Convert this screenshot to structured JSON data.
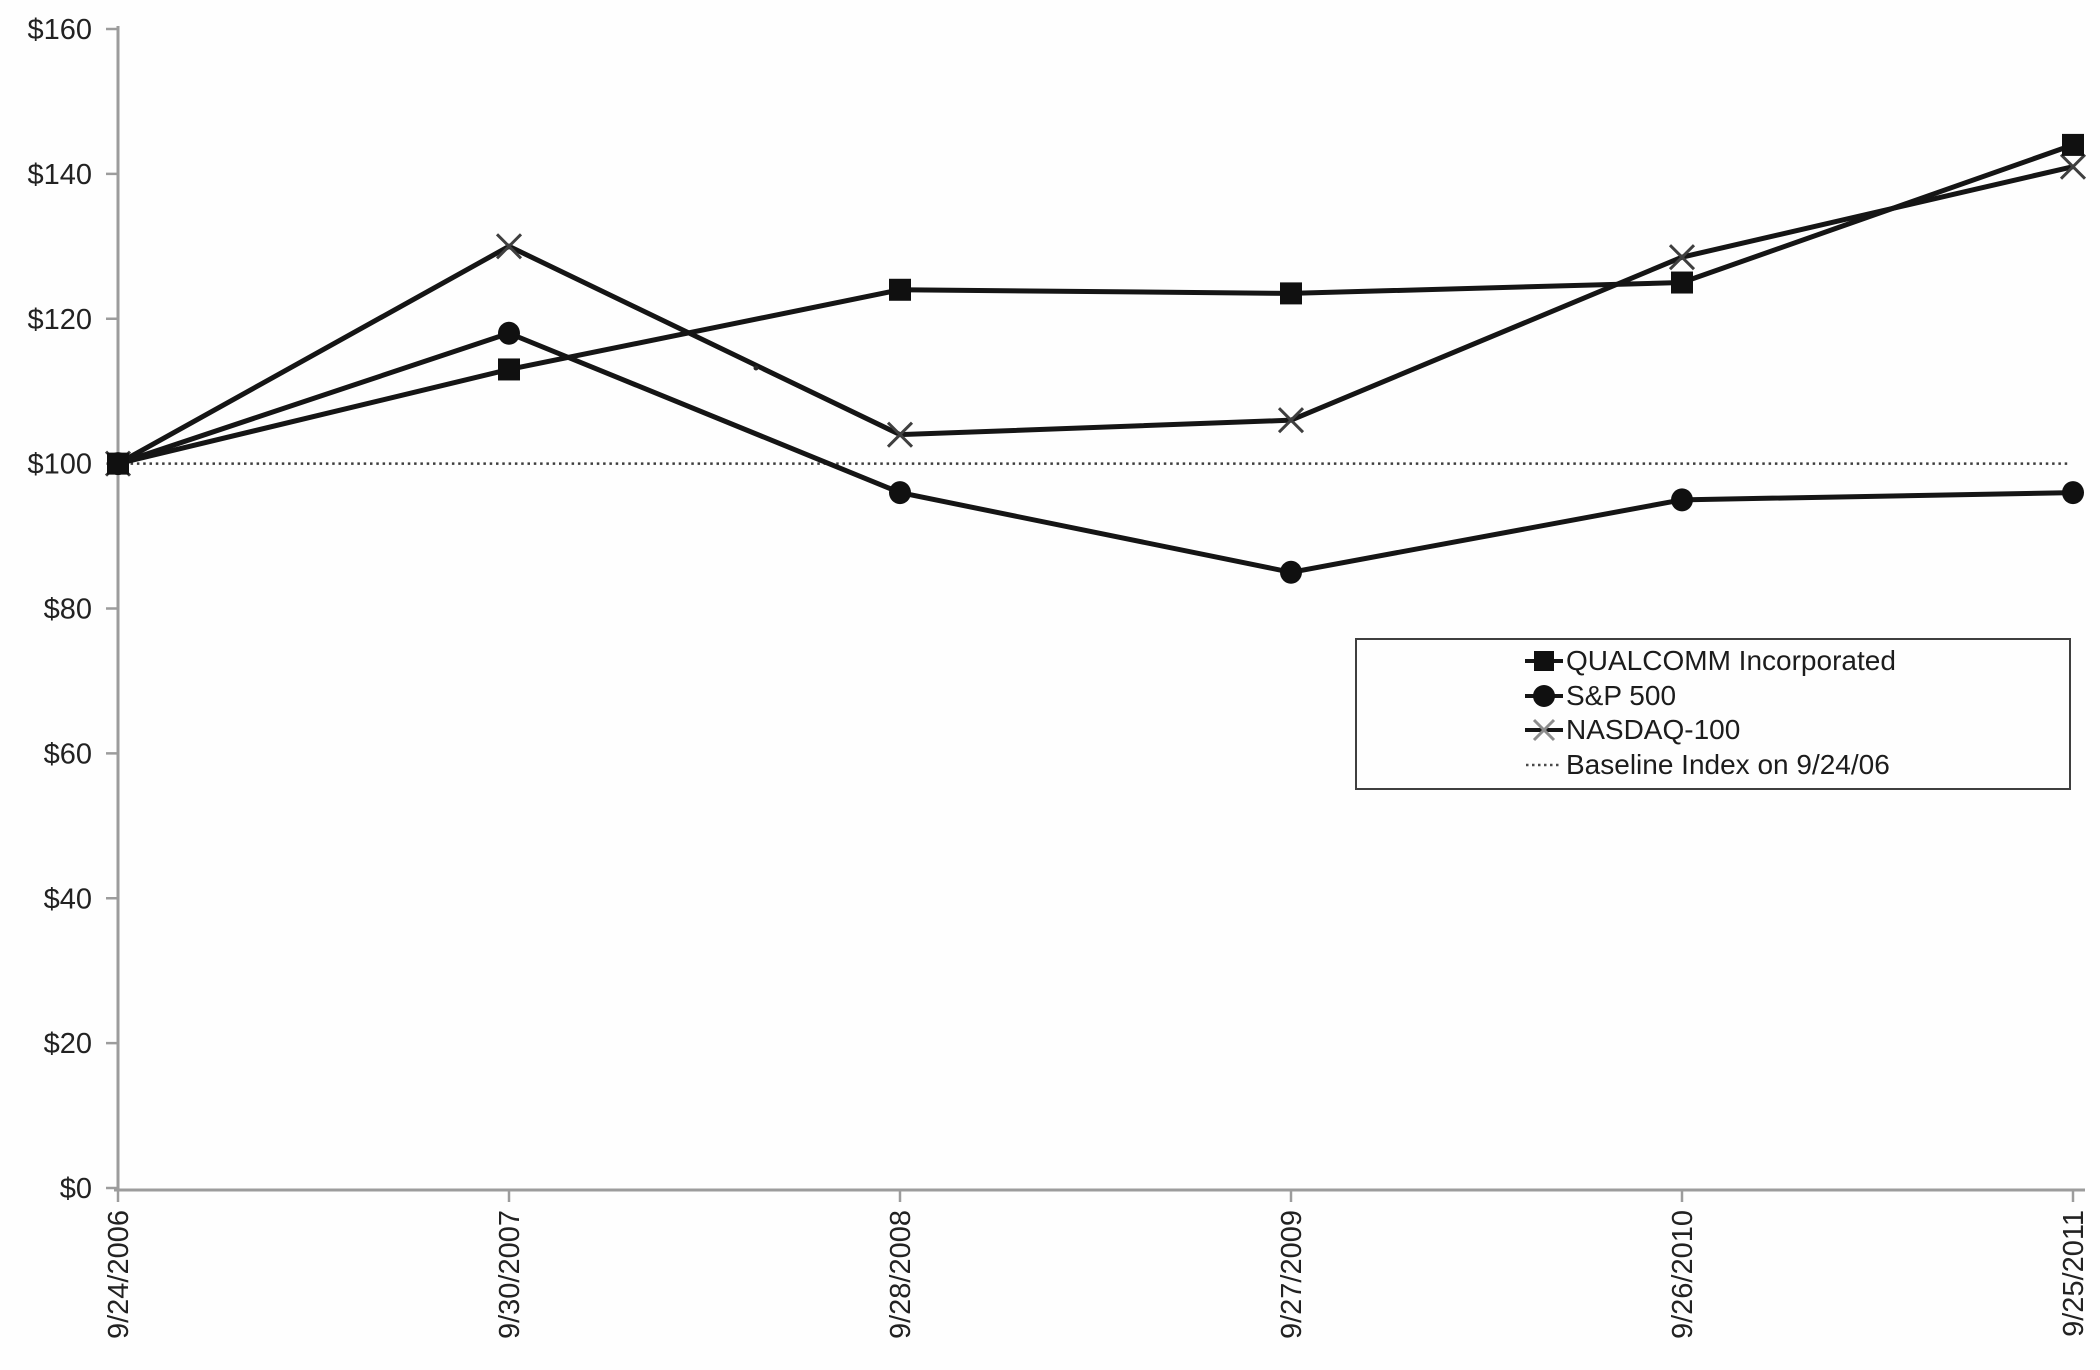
{
  "chart_data": {
    "type": "line",
    "title": "",
    "xlabel": "",
    "ylabel": "",
    "x_axis": {
      "labels": [
        "9/24/2006",
        "9/30/2007",
        "9/28/2008",
        "9/27/2009",
        "9/26/2010",
        "9/25/2011"
      ],
      "label_rotation_deg": -90
    },
    "y_axis": {
      "min": 0,
      "max": 160,
      "tick_step": 20,
      "ticks": [
        0,
        20,
        40,
        60,
        80,
        100,
        120,
        140,
        160
      ],
      "prefix": "$"
    },
    "grid": false,
    "legend_position": "middle-right",
    "series": [
      {
        "name": "QUALCOMM Incorporated",
        "marker": "square",
        "line_style": "solid",
        "values": [
          100,
          113,
          124,
          123.5,
          125,
          144
        ]
      },
      {
        "name": "S&P 500",
        "marker": "circle",
        "line_style": "solid",
        "values": [
          100,
          118,
          96,
          85,
          95,
          96
        ]
      },
      {
        "name": "NASDAQ-100",
        "marker": "x",
        "line_style": "solid",
        "values": [
          100,
          130,
          104,
          106,
          128.5,
          141
        ]
      },
      {
        "name": "Baseline Index on 9/24/06",
        "marker": "none",
        "line_style": "dotted",
        "values": [
          100,
          100,
          100,
          100,
          100,
          100
        ]
      }
    ],
    "colors": {
      "series_line": "#151515",
      "marker_fill": "#101010",
      "x_marker_stroke": "#3f3f3f",
      "baseline": "#3d3d3d",
      "axis": "#9c9c9c",
      "text": "#222222",
      "background": "#fefefe",
      "legend_border": "#3f3f3f"
    }
  }
}
